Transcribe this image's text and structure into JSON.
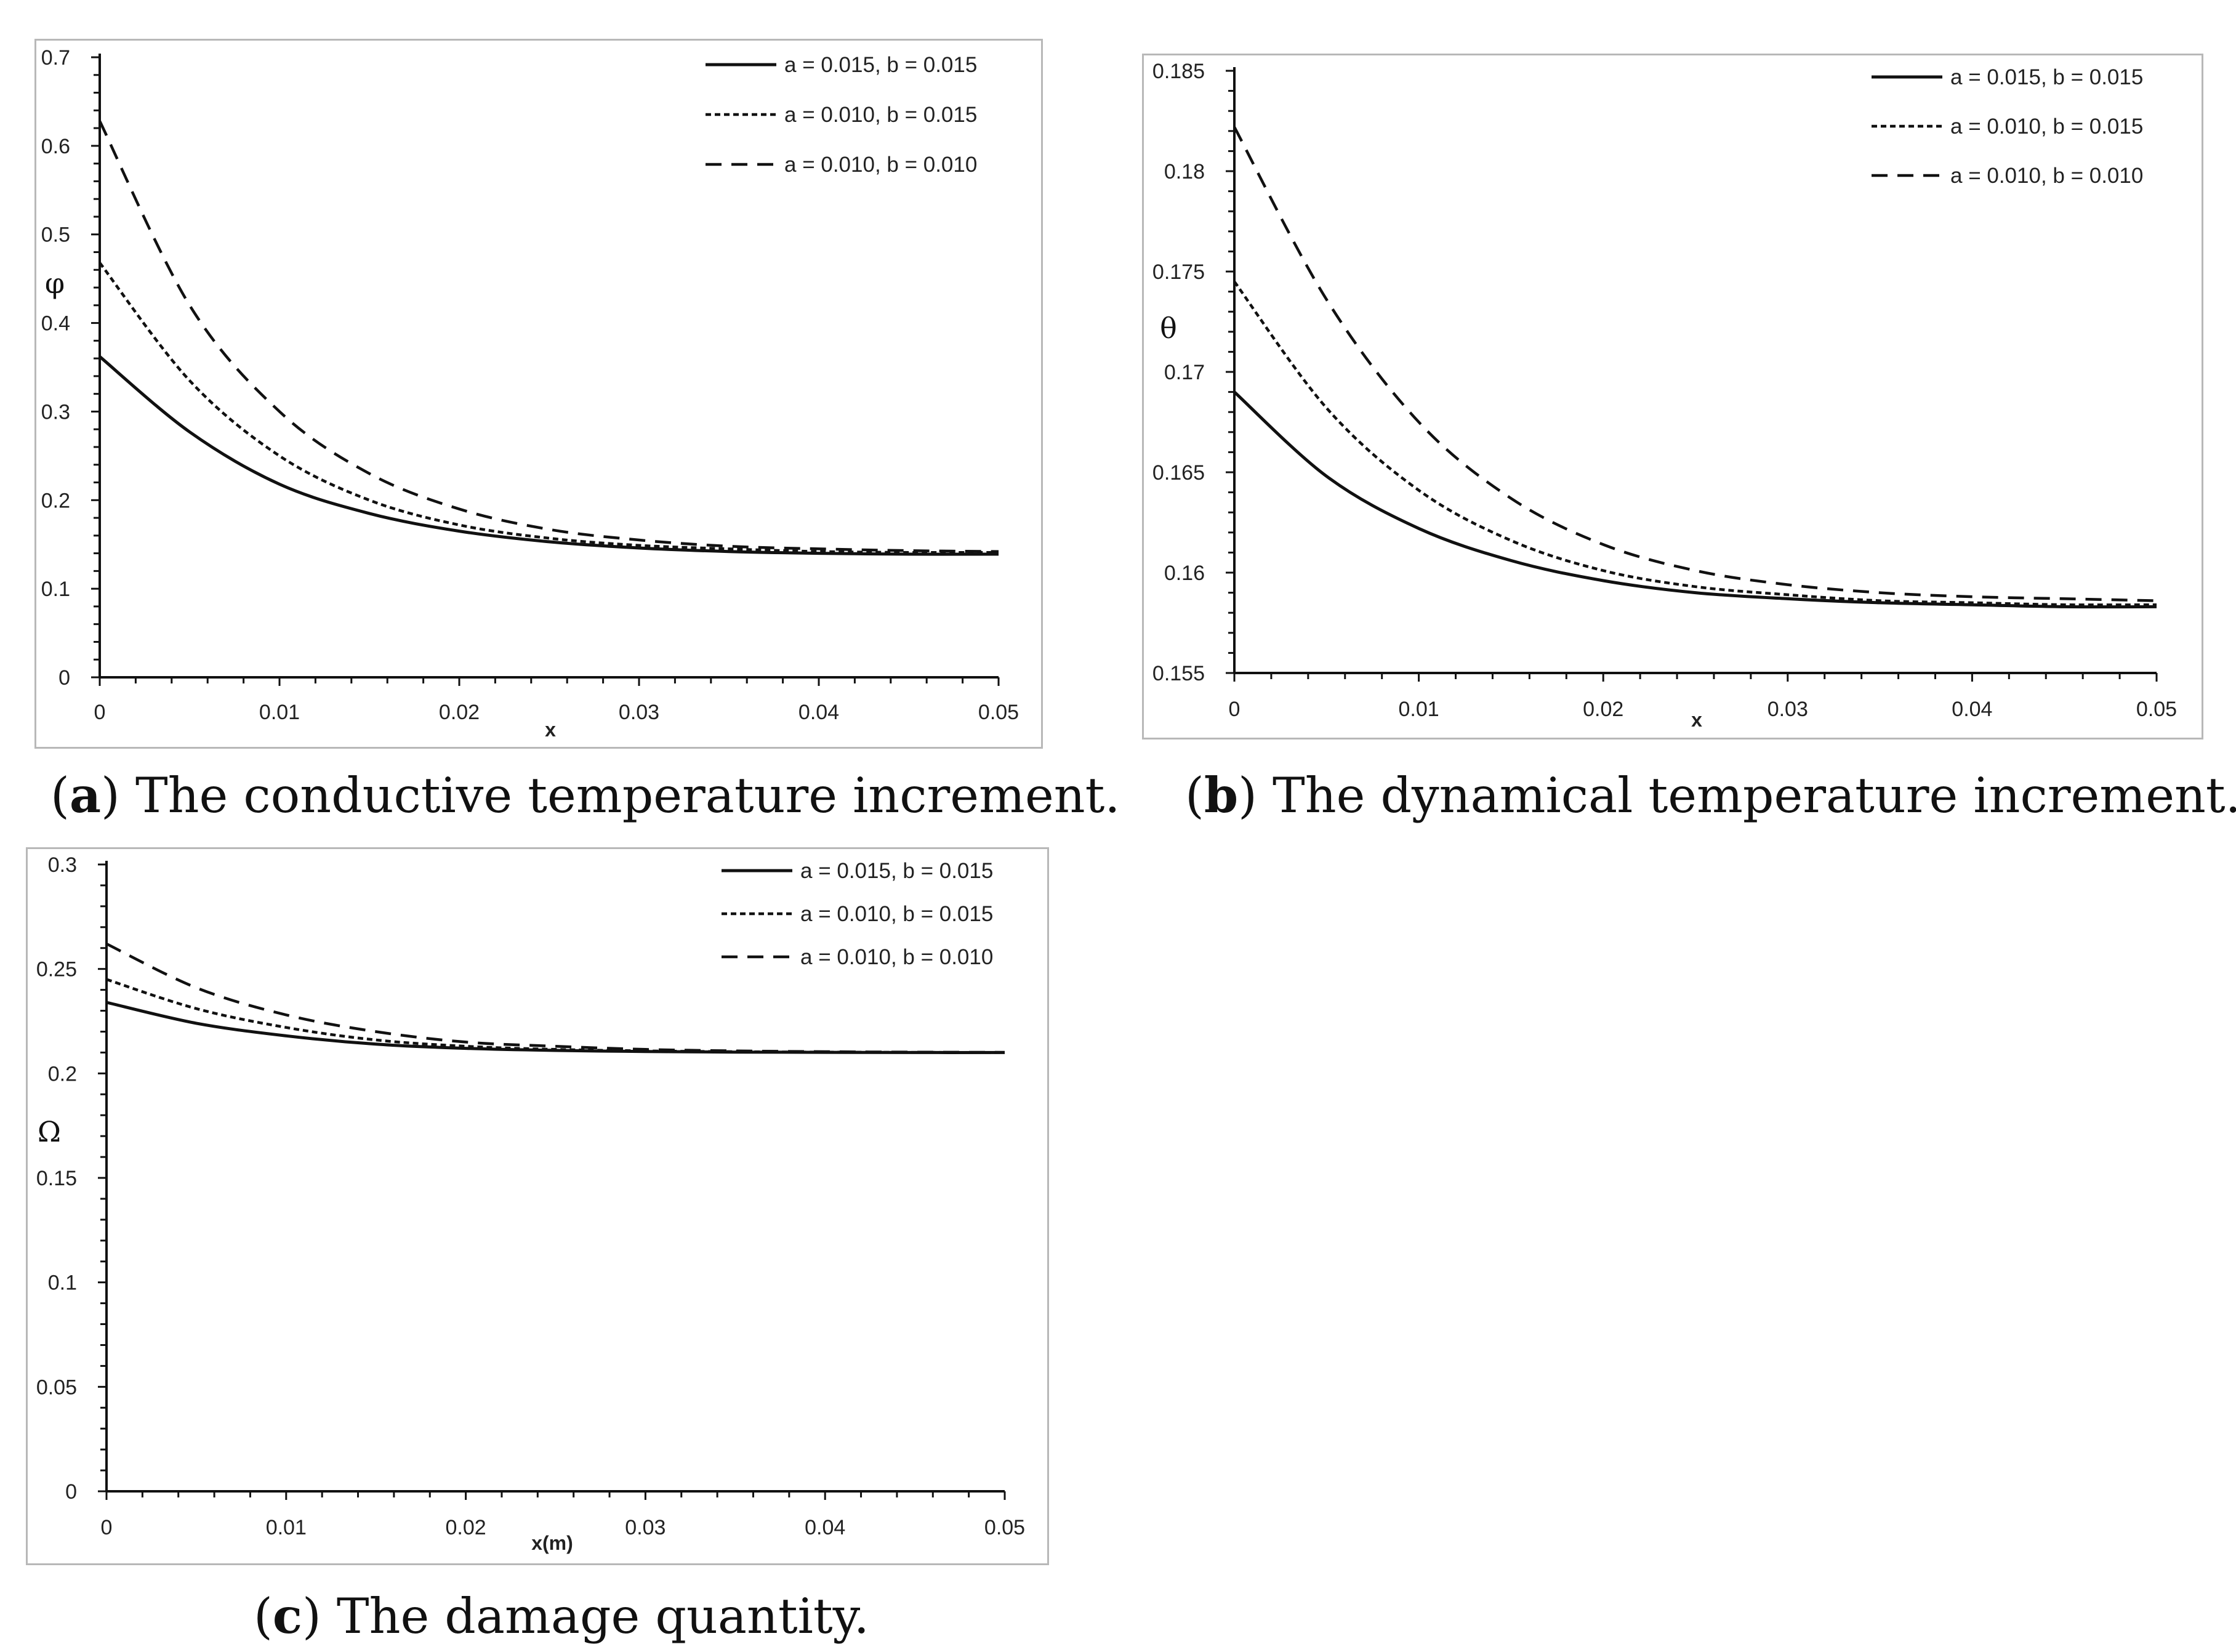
{
  "figure": {
    "captions": [
      {
        "letter": "a",
        "text": ") The conductive temperature increment."
      },
      {
        "letter": "b",
        "text": ") The dynamical temperature increment."
      },
      {
        "letter": "c",
        "text": ") The damage quantity."
      }
    ],
    "caption_open": "("
  },
  "chart_data": [
    {
      "type": "line",
      "id": "a",
      "title": "",
      "xlabel": "x",
      "ylabel": "φ",
      "xlim": [
        0,
        0.05
      ],
      "ylim": [
        0,
        0.7
      ],
      "xticks": [
        "0",
        "0.01",
        "0.02",
        "0.03",
        "0.04",
        "0.05"
      ],
      "yticks": [
        "0",
        "0.1",
        "0.2",
        "0.3",
        "0.4",
        "0.5",
        "0.6",
        "0.7"
      ],
      "legend_position": "top-right",
      "x": [
        0,
        0.005,
        0.01,
        0.015,
        0.02,
        0.025,
        0.03,
        0.035,
        0.04,
        0.045,
        0.05
      ],
      "series": [
        {
          "name": "a = 0.015, b = 0.015",
          "style": "solid",
          "values": [
            0.362,
            0.277,
            0.218,
            0.185,
            0.165,
            0.153,
            0.146,
            0.142,
            0.14,
            0.139,
            0.139
          ]
        },
        {
          "name": "a = 0.010, b = 0.015",
          "style": "dotted",
          "values": [
            0.468,
            0.335,
            0.25,
            0.2,
            0.172,
            0.157,
            0.149,
            0.145,
            0.142,
            0.141,
            0.141
          ]
        },
        {
          "name": "a = 0.010, b = 0.010",
          "style": "dashed",
          "values": [
            0.628,
            0.42,
            0.3,
            0.23,
            0.19,
            0.167,
            0.155,
            0.148,
            0.145,
            0.143,
            0.142
          ]
        }
      ]
    },
    {
      "type": "line",
      "id": "b",
      "title": "",
      "xlabel": "x",
      "ylabel": "θ",
      "xlim": [
        0,
        0.05
      ],
      "ylim": [
        0.155,
        0.185
      ],
      "xticks": [
        "0",
        "0.01",
        "0.02",
        "0.03",
        "0.04",
        "0.05"
      ],
      "yticks": [
        "0.155",
        "0.16",
        "0.165",
        "0.17",
        "0.175",
        "0.18",
        "0.185"
      ],
      "legend_position": "top-right",
      "x": [
        0,
        0.005,
        0.01,
        0.015,
        0.02,
        0.025,
        0.03,
        0.035,
        0.04,
        0.045,
        0.05
      ],
      "series": [
        {
          "name": "a = 0.015, b = 0.015",
          "style": "solid",
          "values": [
            0.169,
            0.1648,
            0.1622,
            0.1606,
            0.1596,
            0.159,
            0.1587,
            0.1585,
            0.1584,
            0.1583,
            0.1583
          ]
        },
        {
          "name": "a = 0.010, b = 0.015",
          "style": "dotted",
          "values": [
            0.1745,
            0.1682,
            0.1641,
            0.1616,
            0.1601,
            0.1593,
            0.1589,
            0.1586,
            0.1585,
            0.1584,
            0.1584
          ]
        },
        {
          "name": "a = 0.010, b = 0.010",
          "style": "dashed",
          "values": [
            0.1822,
            0.1736,
            0.1675,
            0.1637,
            0.1614,
            0.1601,
            0.1594,
            0.159,
            0.1588,
            0.1587,
            0.1586
          ]
        }
      ]
    },
    {
      "type": "line",
      "id": "c",
      "title": "",
      "xlabel": "x(m)",
      "ylabel": "Ω",
      "xlim": [
        0,
        0.05
      ],
      "ylim": [
        0,
        0.3
      ],
      "xticks": [
        "0",
        "0.01",
        "0.02",
        "0.03",
        "0.04",
        "0.05"
      ],
      "yticks": [
        "0",
        "0.05",
        "0.1",
        "0.15",
        "0.2",
        "0.25",
        "0.3"
      ],
      "legend_position": "top-right",
      "x": [
        0,
        0.005,
        0.01,
        0.015,
        0.02,
        0.025,
        0.03,
        0.035,
        0.04,
        0.045,
        0.05
      ],
      "series": [
        {
          "name": "a = 0.015, b = 0.015",
          "style": "solid",
          "values": [
            0.234,
            0.224,
            0.218,
            0.214,
            0.212,
            0.211,
            0.2105,
            0.2102,
            0.2101,
            0.21,
            0.21
          ]
        },
        {
          "name": "a = 0.010, b = 0.015",
          "style": "dotted",
          "values": [
            0.245,
            0.231,
            0.222,
            0.216,
            0.213,
            0.2115,
            0.2108,
            0.2104,
            0.2102,
            0.2101,
            0.21
          ]
        },
        {
          "name": "a = 0.010, b = 0.010",
          "style": "dashed",
          "values": [
            0.262,
            0.241,
            0.228,
            0.22,
            0.215,
            0.213,
            0.2115,
            0.2108,
            0.2104,
            0.2102,
            0.2101
          ]
        }
      ]
    }
  ]
}
